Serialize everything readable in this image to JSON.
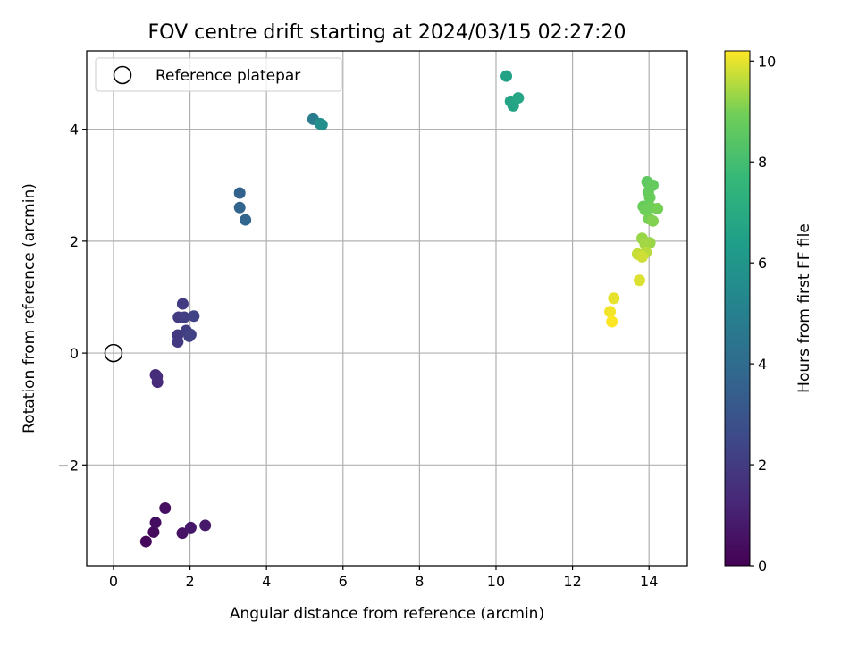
{
  "chart_data": {
    "type": "scatter",
    "title": "FOV centre drift starting at 2024/03/15 02:27:20",
    "xlabel": "Angular distance from reference (arcmin)",
    "ylabel": "Rotation from reference (arcmin)",
    "xlim": [
      -0.7,
      15.0
    ],
    "ylim": [
      -3.8,
      5.4
    ],
    "xticks": [
      0,
      2,
      4,
      6,
      8,
      10,
      12,
      14
    ],
    "yticks": [
      -2,
      0,
      2,
      4
    ],
    "xtick_labels": [
      "0",
      "2",
      "4",
      "6",
      "8",
      "10",
      "12",
      "14"
    ],
    "ytick_labels": [
      "−2",
      "0",
      "2",
      "4"
    ],
    "grid": true,
    "legend": {
      "placement": "top-left",
      "entries": [
        {
          "label": "Reference platepar",
          "marker": "open-circle"
        }
      ]
    },
    "reference_point": {
      "x": 0,
      "y": 0
    },
    "colorbar": {
      "label": "Hours from first FF file",
      "range": [
        0,
        10.2
      ],
      "ticks": [
        0,
        2,
        4,
        6,
        8,
        10
      ],
      "tick_labels": [
        "0",
        "2",
        "4",
        "6",
        "8",
        "10"
      ],
      "colormap": "viridis"
    },
    "points": [
      {
        "x": 0.85,
        "y": -3.37,
        "hours": 0.2
      },
      {
        "x": 1.05,
        "y": -3.2,
        "hours": 0.3
      },
      {
        "x": 1.1,
        "y": -3.03,
        "hours": 0.4
      },
      {
        "x": 1.35,
        "y": -2.77,
        "hours": 0.5
      },
      {
        "x": 1.8,
        "y": -3.22,
        "hours": 0.6
      },
      {
        "x": 2.02,
        "y": -3.12,
        "hours": 0.7
      },
      {
        "x": 2.4,
        "y": -3.08,
        "hours": 0.8
      },
      {
        "x": 1.1,
        "y": -0.39,
        "hours": 1.4
      },
      {
        "x": 1.15,
        "y": -0.52,
        "hours": 1.4
      },
      {
        "x": 1.14,
        "y": -0.42,
        "hours": 1.5
      },
      {
        "x": 1.68,
        "y": 0.32,
        "hours": 1.9
      },
      {
        "x": 1.68,
        "y": 0.2,
        "hours": 1.9
      },
      {
        "x": 1.7,
        "y": 0.64,
        "hours": 2.0
      },
      {
        "x": 1.81,
        "y": 0.88,
        "hours": 2.0
      },
      {
        "x": 1.85,
        "y": 0.64,
        "hours": 2.1
      },
      {
        "x": 1.9,
        "y": 0.4,
        "hours": 2.1
      },
      {
        "x": 1.98,
        "y": 0.3,
        "hours": 2.2
      },
      {
        "x": 2.02,
        "y": 0.33,
        "hours": 2.2
      },
      {
        "x": 2.1,
        "y": 0.66,
        "hours": 2.3
      },
      {
        "x": 3.3,
        "y": 2.86,
        "hours": 3.6
      },
      {
        "x": 3.3,
        "y": 2.6,
        "hours": 3.7
      },
      {
        "x": 3.45,
        "y": 2.38,
        "hours": 3.8
      },
      {
        "x": 5.22,
        "y": 4.18,
        "hours": 4.8
      },
      {
        "x": 5.4,
        "y": 4.1,
        "hours": 5.6
      },
      {
        "x": 5.45,
        "y": 4.08,
        "hours": 5.7
      },
      {
        "x": 10.27,
        "y": 4.95,
        "hours": 6.6
      },
      {
        "x": 10.38,
        "y": 4.5,
        "hours": 6.7
      },
      {
        "x": 10.45,
        "y": 4.42,
        "hours": 6.7
      },
      {
        "x": 10.58,
        "y": 4.56,
        "hours": 6.8
      },
      {
        "x": 13.95,
        "y": 3.06,
        "hours": 8.6
      },
      {
        "x": 14.1,
        "y": 3.0,
        "hours": 8.7
      },
      {
        "x": 13.98,
        "y": 2.88,
        "hours": 8.7
      },
      {
        "x": 14.02,
        "y": 2.78,
        "hours": 8.8
      },
      {
        "x": 13.85,
        "y": 2.62,
        "hours": 8.8
      },
      {
        "x": 13.9,
        "y": 2.56,
        "hours": 8.9
      },
      {
        "x": 14.05,
        "y": 2.6,
        "hours": 8.9
      },
      {
        "x": 14.22,
        "y": 2.58,
        "hours": 9.0
      },
      {
        "x": 14.0,
        "y": 2.4,
        "hours": 9.0
      },
      {
        "x": 14.1,
        "y": 2.36,
        "hours": 9.1
      },
      {
        "x": 13.82,
        "y": 2.05,
        "hours": 9.3
      },
      {
        "x": 14.02,
        "y": 1.97,
        "hours": 9.3
      },
      {
        "x": 13.9,
        "y": 1.95,
        "hours": 9.4
      },
      {
        "x": 13.92,
        "y": 1.8,
        "hours": 9.6
      },
      {
        "x": 13.7,
        "y": 1.77,
        "hours": 9.7
      },
      {
        "x": 13.82,
        "y": 1.72,
        "hours": 9.8
      },
      {
        "x": 13.75,
        "y": 1.3,
        "hours": 9.9
      },
      {
        "x": 13.08,
        "y": 0.98,
        "hours": 10.0
      },
      {
        "x": 12.98,
        "y": 0.74,
        "hours": 10.1
      },
      {
        "x": 13.03,
        "y": 0.56,
        "hours": 10.2
      }
    ]
  }
}
